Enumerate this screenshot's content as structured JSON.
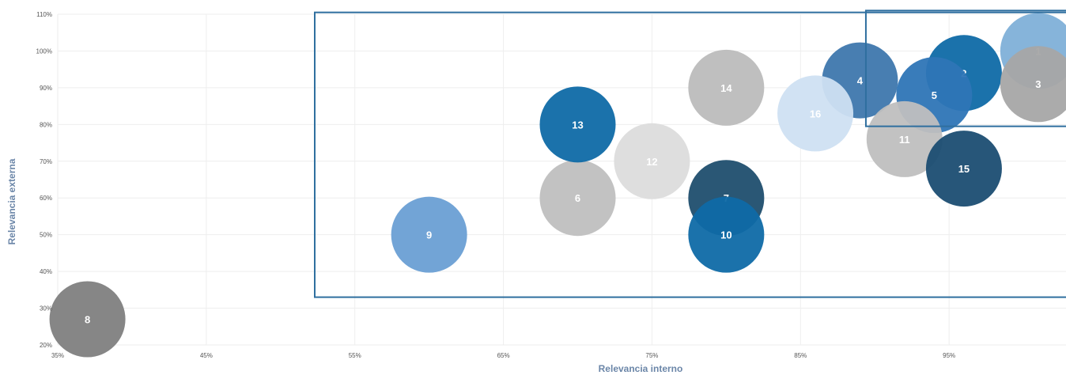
{
  "chart_data": {
    "type": "bubble",
    "xlabel": "Relevancia interno",
    "ylabel": "Relevancia externa",
    "xlim": [
      35,
      105
    ],
    "ylim": [
      20,
      110
    ],
    "x_ticks": [
      "35%",
      "45%",
      "55%",
      "65%",
      "75%",
      "85%",
      "95%"
    ],
    "y_ticks": [
      "20%",
      "30%",
      "40%",
      "50%",
      "60%",
      "70%",
      "80%",
      "90%",
      "100%",
      "110%"
    ],
    "grid": true,
    "points": [
      {
        "label": "1",
        "x": 101,
        "y": 100,
        "color": "#7fb0d8"
      },
      {
        "label": "2",
        "x": 96,
        "y": 94,
        "color": "#0f6aa6"
      },
      {
        "label": "3",
        "x": 101,
        "y": 91,
        "color": "#a6a6a6"
      },
      {
        "label": "4",
        "x": 89,
        "y": 92,
        "color": "#3e77ad"
      },
      {
        "label": "5",
        "x": 94,
        "y": 88,
        "color": "#2e75b6"
      },
      {
        "label": "6",
        "x": 70,
        "y": 60,
        "color": "#bfbfbf"
      },
      {
        "label": "7",
        "x": 80,
        "y": 60,
        "color": "#1f4e6e"
      },
      {
        "label": "8",
        "x": 37,
        "y": 27,
        "color": "#808080"
      },
      {
        "label": "9",
        "x": 60,
        "y": 50,
        "color": "#6a9fd4"
      },
      {
        "label": "10",
        "x": 80,
        "y": 50,
        "color": "#0f6aa6"
      },
      {
        "label": "11",
        "x": 92,
        "y": 76,
        "color": "#bfbfbf"
      },
      {
        "label": "12",
        "x": 75,
        "y": 70,
        "color": "#dcdcdc"
      },
      {
        "label": "13",
        "x": 70,
        "y": 80,
        "color": "#0f6aa6"
      },
      {
        "label": "14",
        "x": 80,
        "y": 90,
        "color": "#bcbcbc"
      },
      {
        "label": "15",
        "x": 96,
        "y": 68,
        "color": "#1b4d72"
      },
      {
        "label": "16",
        "x": 86,
        "y": 83,
        "color": "#cfe0f2"
      }
    ],
    "regions": [
      {
        "name": "outer",
        "x0": 52.3,
        "x1": 106,
        "y0": 33,
        "y1": 110.5,
        "color": "#2f6f9f"
      },
      {
        "name": "inner",
        "x0": 89.4,
        "x1": 106,
        "y0": 79.5,
        "y1": 111,
        "color": "#2f6f9f"
      }
    ]
  }
}
